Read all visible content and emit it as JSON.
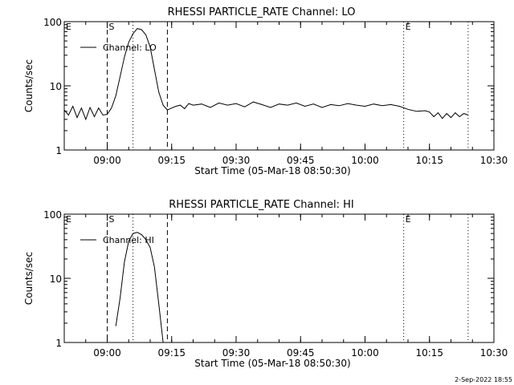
{
  "footer_date": "2-Sep-2022 18:55",
  "chart_data": [
    {
      "type": "line",
      "title": "RHESSI PARTICLE_RATE Channel: LO",
      "xlabel": "Start Time (05-Mar-18 08:50:30)",
      "ylabel": "Counts/sec",
      "yscale": "log",
      "ylim": [
        1,
        100
      ],
      "y_ticks": [
        1,
        10,
        100
      ],
      "y_tick_labels": [
        "1",
        "10",
        "100"
      ],
      "xlim": [
        "08:50",
        "10:30"
      ],
      "x_ticks": [
        "09:00",
        "09:15",
        "09:30",
        "09:45",
        "10:00",
        "10:15",
        "10:30"
      ],
      "legend": "Channel: LO",
      "legend_position": "top-left",
      "markers": [
        {
          "time": "08:50",
          "style": "dotted",
          "label": "E"
        },
        {
          "time": "09:00",
          "style": "dashed",
          "label": "S"
        },
        {
          "time": "09:06",
          "style": "dotted",
          "label": ""
        },
        {
          "time": "09:14",
          "style": "dashed",
          "label": ""
        },
        {
          "time": "10:09",
          "style": "dotted",
          "label": "E"
        },
        {
          "time": "10:24",
          "style": "dotted",
          "label": ""
        }
      ],
      "series": [
        {
          "x": [
            "08:50",
            "08:51",
            "08:52",
            "08:53",
            "08:54",
            "08:55",
            "08:56",
            "08:57",
            "08:58",
            "08:59",
            "09:00",
            "09:01",
            "09:02",
            "09:03",
            "09:04",
            "09:05",
            "09:06",
            "09:07",
            "09:08",
            "09:09",
            "09:10",
            "09:11",
            "09:12",
            "09:13",
            "09:14",
            "09:15",
            "09:16",
            "09:17",
            "09:18",
            "09:19",
            "09:20",
            "09:22",
            "09:24",
            "09:26",
            "09:28",
            "09:30",
            "09:32",
            "09:34",
            "09:36",
            "09:38",
            "09:40",
            "09:42",
            "09:44",
            "09:46",
            "09:48",
            "09:50",
            "09:52",
            "09:54",
            "09:56",
            "09:58",
            "10:00",
            "10:02",
            "10:04",
            "10:06",
            "10:08",
            "10:10",
            "10:12",
            "10:14",
            "10:15",
            "10:16",
            "10:17",
            "10:18",
            "10:19",
            "10:20",
            "10:21",
            "10:22",
            "10:23",
            "10:24"
          ],
          "y": [
            4.2,
            3.5,
            4.8,
            3.2,
            4.5,
            3.0,
            4.6,
            3.3,
            4.5,
            3.5,
            3.6,
            4.5,
            7,
            14,
            28,
            48,
            65,
            78,
            75,
            62,
            40,
            18,
            8,
            5,
            4.2,
            4.5,
            4.8,
            5,
            4.4,
            5.3,
            5,
            5.2,
            4.6,
            5.4,
            5,
            5.3,
            4.7,
            5.6,
            5.1,
            4.6,
            5.2,
            5,
            5.4,
            4.8,
            5.2,
            4.6,
            5.1,
            4.9,
            5.3,
            5,
            4.8,
            5.2,
            4.9,
            5.1,
            4.8,
            4.3,
            4.0,
            4.1,
            3.9,
            3.3,
            3.8,
            3.1,
            3.7,
            3.2,
            3.8,
            3.3,
            3.7,
            3.5
          ]
        }
      ]
    },
    {
      "type": "line",
      "title": "RHESSI PARTICLE_RATE Channel: HI",
      "xlabel": "Start Time (05-Mar-18 08:50:30)",
      "ylabel": "Counts/sec",
      "yscale": "log",
      "ylim": [
        1,
        100
      ],
      "y_ticks": [
        1,
        10,
        100
      ],
      "y_tick_labels": [
        "1",
        "10",
        "100"
      ],
      "xlim": [
        "08:50",
        "10:30"
      ],
      "x_ticks": [
        "09:00",
        "09:15",
        "09:30",
        "09:45",
        "10:00",
        "10:15",
        "10:30"
      ],
      "legend": "Channel: HI",
      "legend_position": "top-left",
      "markers": [
        {
          "time": "08:50",
          "style": "dotted",
          "label": "E"
        },
        {
          "time": "09:00",
          "style": "dashed",
          "label": "S"
        },
        {
          "time": "09:06",
          "style": "dotted",
          "label": ""
        },
        {
          "time": "09:14",
          "style": "dashed",
          "label": ""
        },
        {
          "time": "10:09",
          "style": "dotted",
          "label": "E"
        },
        {
          "time": "10:24",
          "style": "dotted",
          "label": ""
        }
      ],
      "series": [
        {
          "x": [
            "09:02",
            "09:03",
            "09:04",
            "09:05",
            "09:06",
            "09:07",
            "09:08",
            "09:09",
            "09:10",
            "09:11",
            "09:12",
            "09:13"
          ],
          "y": [
            1.8,
            5,
            18,
            38,
            50,
            52,
            48,
            40,
            30,
            15,
            4,
            1
          ]
        }
      ]
    }
  ]
}
